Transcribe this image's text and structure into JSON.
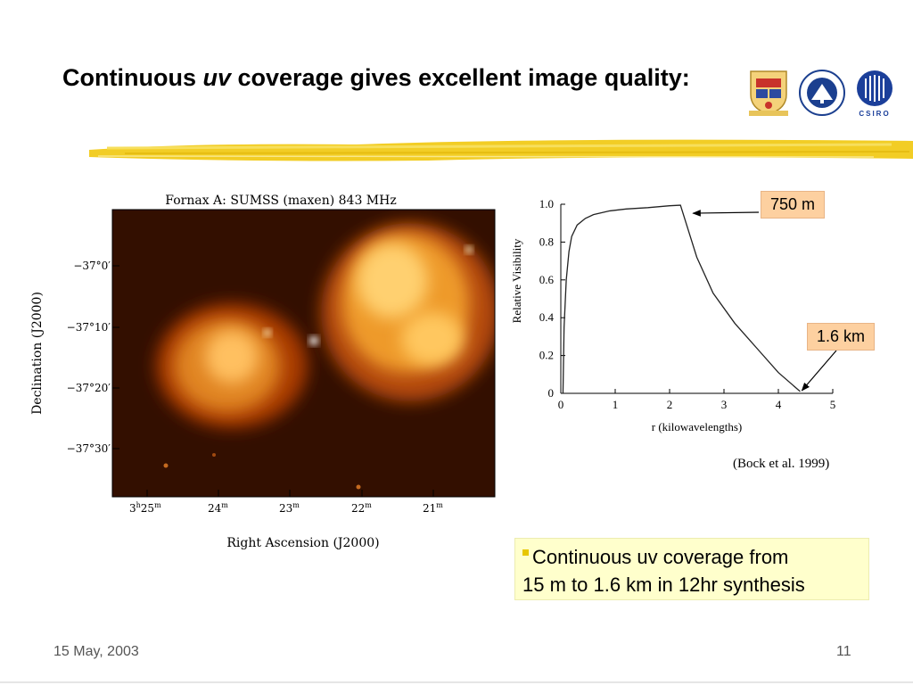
{
  "slide": {
    "title_part1": "Continuous ",
    "title_italic": "uv",
    "title_part2": " coverage gives excellent image quality:",
    "logo_text": "CSIRO",
    "date": "15 May, 2003",
    "page_number": "11"
  },
  "radio_image": {
    "title": "Fornax A: SUMSS (maxen) 843 MHz",
    "ylabel": "Declination (J2000)",
    "xlabel": "Right Ascension (J2000)",
    "yticks": [
      "−37°0′",
      "−37°10′",
      "−37°20′",
      "−37°30′"
    ],
    "xticks_prefix": [
      "3",
      "24",
      "23",
      "22",
      "21"
    ],
    "xtick_h": "h",
    "xtick_m": "m",
    "first_tick_minutes": "25"
  },
  "chart_data": {
    "type": "line",
    "ylabel": "Relative Visibility",
    "xlabel": "r   (kilowavelengths)",
    "xlim": [
      0,
      5
    ],
    "ylim": [
      0,
      1.0
    ],
    "xticks": [
      "0",
      "1",
      "2",
      "3",
      "4",
      "5"
    ],
    "yticks": [
      "0",
      "0.2",
      "0.4",
      "0.6",
      "0.8",
      "1.0"
    ],
    "series": [
      {
        "x": [
          0.04,
          0.06,
          0.1,
          0.15,
          0.2,
          0.3,
          0.45,
          0.6,
          0.9,
          1.2,
          1.6,
          2.0,
          2.2,
          2.5,
          2.8,
          3.2,
          3.6,
          4.0,
          4.4
        ],
        "y": [
          0.0,
          0.35,
          0.6,
          0.75,
          0.83,
          0.89,
          0.925,
          0.945,
          0.965,
          0.975,
          0.982,
          0.992,
          0.995,
          0.72,
          0.53,
          0.37,
          0.24,
          0.11,
          0.01
        ]
      }
    ],
    "annotations": [
      {
        "label": "750 m",
        "x": 2.2,
        "y": 0.995
      },
      {
        "label": "1.6 km",
        "x": 4.4,
        "y": 0.01
      }
    ]
  },
  "citation": "(Bock et al. 1999)",
  "bullet": {
    "line1": "Continuous uv coverage from",
    "line2": "15 m to 1.6 km in 12hr synthesis"
  },
  "colors": {
    "highlight": "#f2cd25",
    "callout": "#fdd0a0",
    "bullet_box": "#ffffcc",
    "bullet_mark": "#e7c600"
  }
}
